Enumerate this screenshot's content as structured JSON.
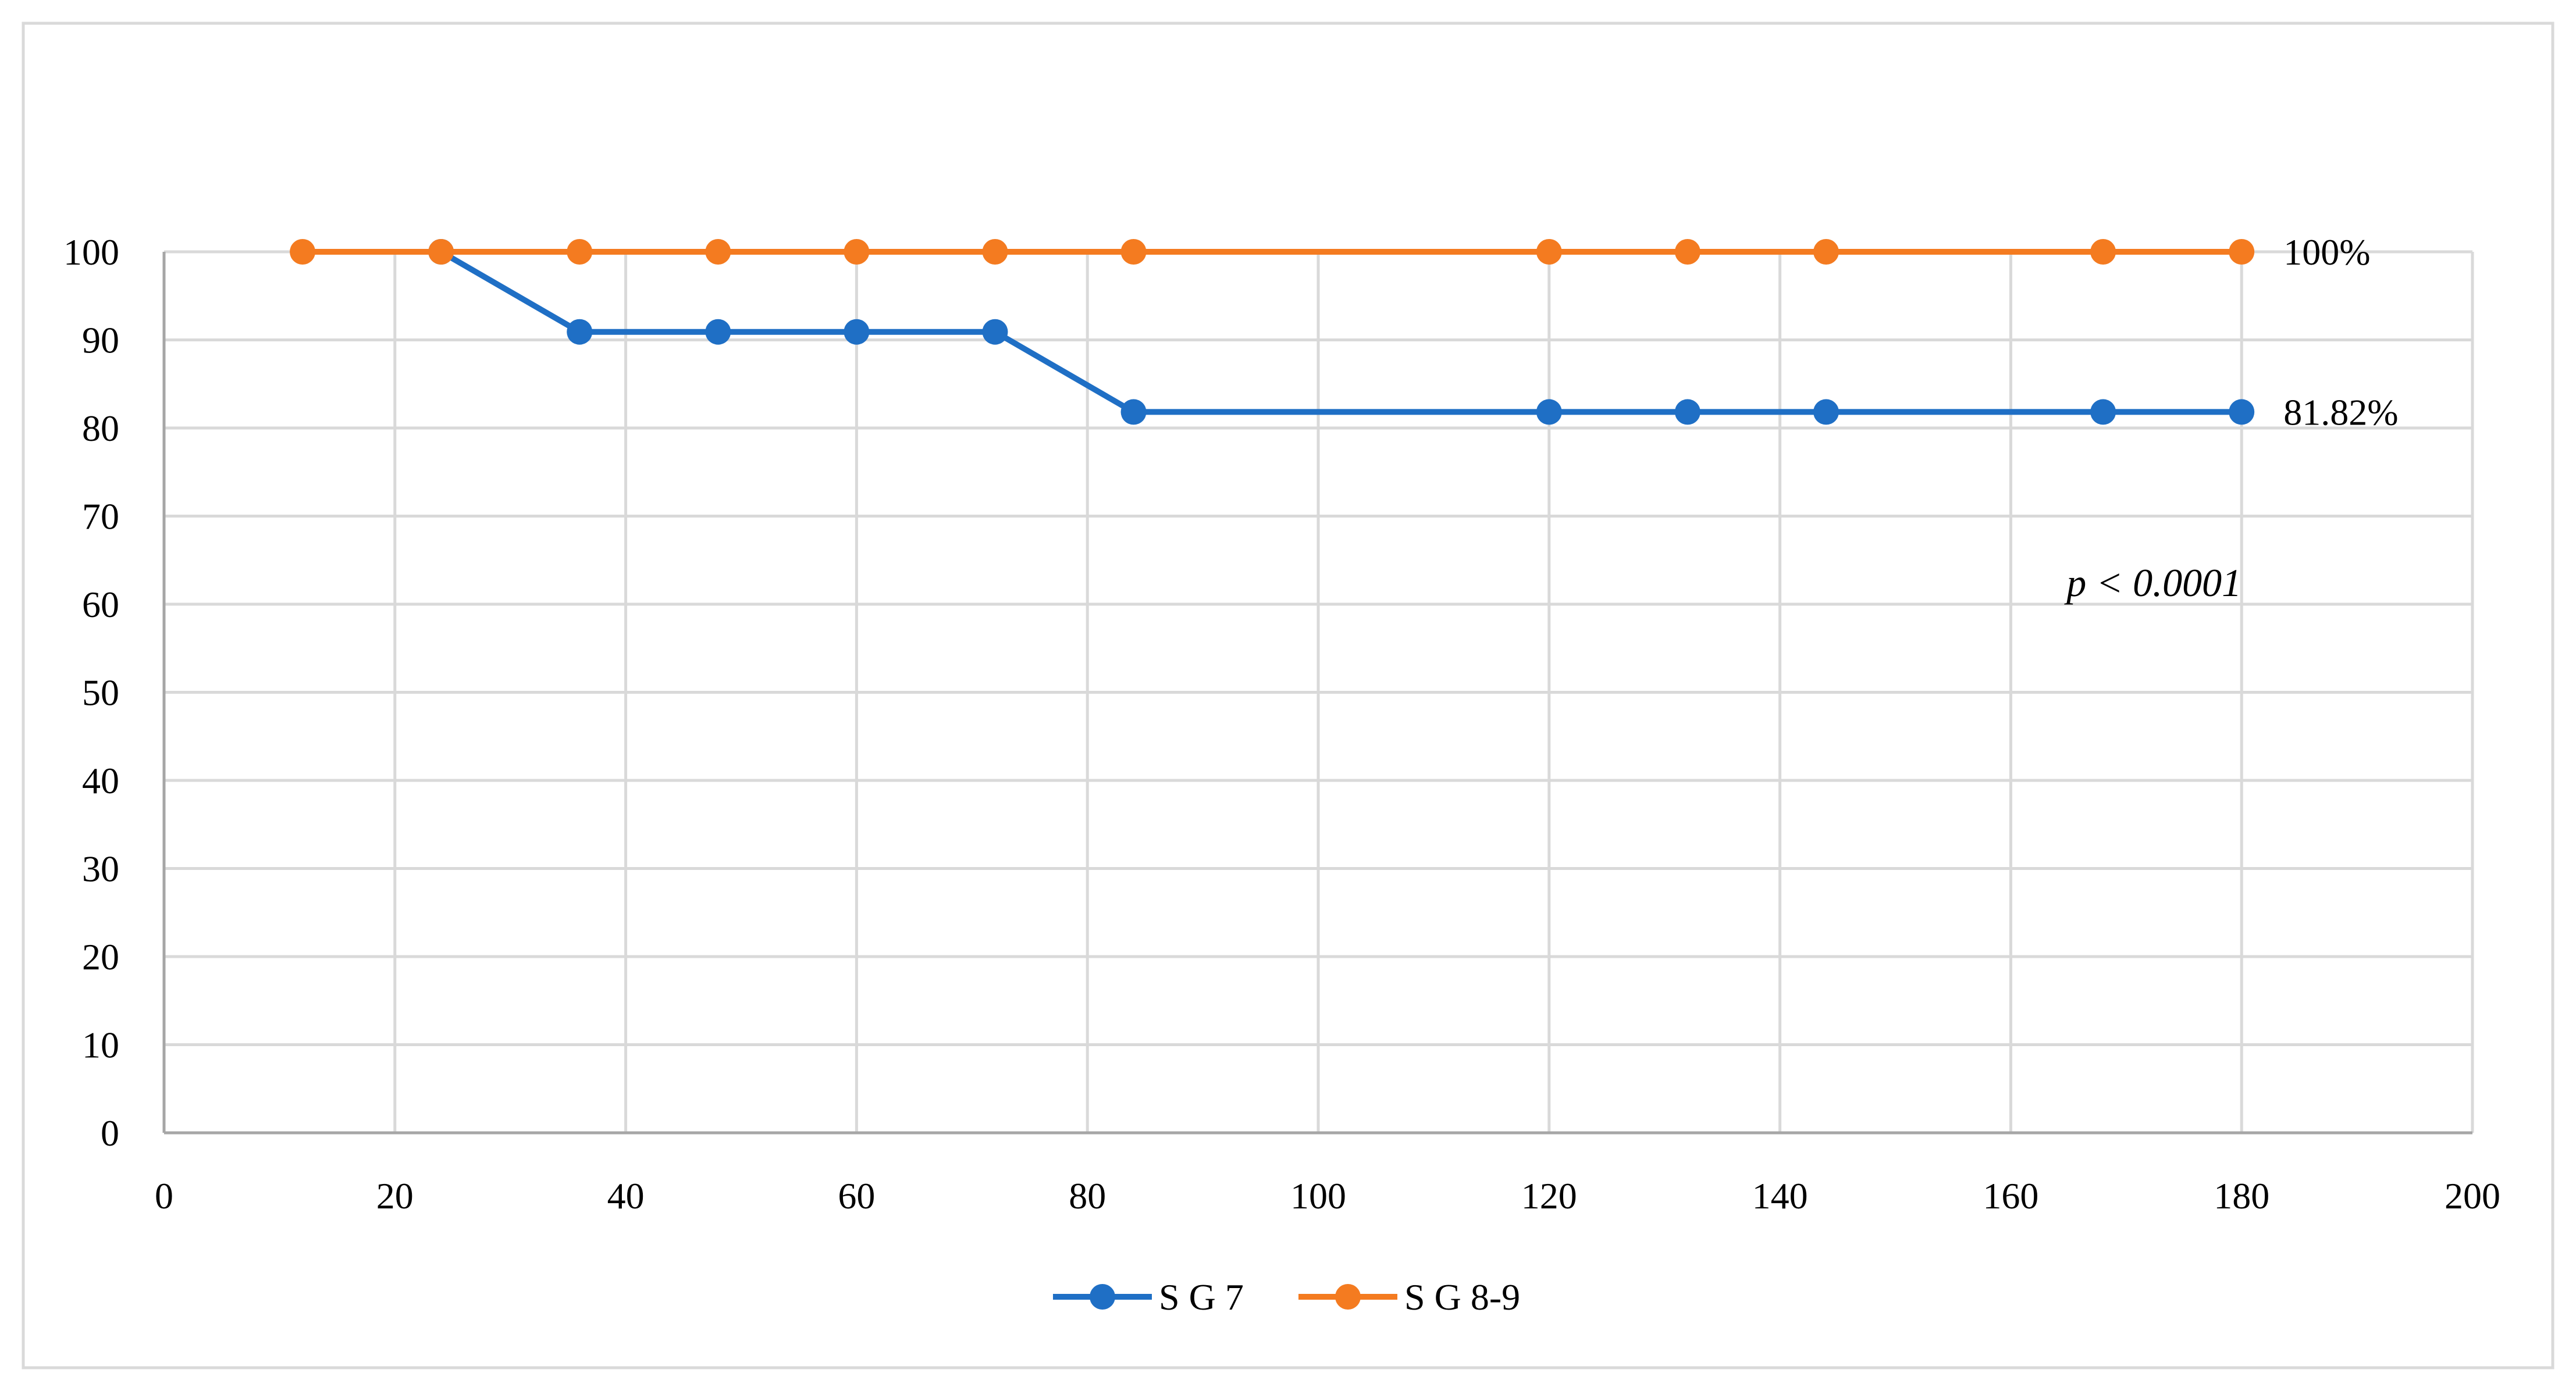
{
  "chart_data": {
    "type": "line",
    "title": "",
    "xlabel": "",
    "ylabel": "",
    "xlim": [
      0,
      200
    ],
    "ylim": [
      0,
      100
    ],
    "x_ticks": [
      "0",
      "20",
      "40",
      "60",
      "80",
      "100",
      "120",
      "140",
      "160",
      "180",
      "200"
    ],
    "y_ticks": [
      "0",
      "10",
      "20",
      "30",
      "40",
      "50",
      "60",
      "70",
      "80",
      "90",
      "100"
    ],
    "grid": true,
    "legend_position": "bottom",
    "series": [
      {
        "name": "S G 7",
        "color": "#1f6fc5",
        "x": [
          24,
          36,
          48,
          60,
          72,
          84,
          120,
          132,
          144,
          168,
          180
        ],
        "y": [
          100,
          90.91,
          90.91,
          90.91,
          90.91,
          81.82,
          81.82,
          81.82,
          81.82,
          81.82,
          81.82
        ],
        "end_label": "81.82%"
      },
      {
        "name": "S G 8-9",
        "color": "#f47b20",
        "x": [
          12,
          24,
          36,
          48,
          60,
          72,
          84,
          120,
          132,
          144,
          168,
          180
        ],
        "y": [
          100,
          100,
          100,
          100,
          100,
          100,
          100,
          100,
          100,
          100,
          100,
          100
        ],
        "end_label": "100%"
      }
    ],
    "annotations": [
      {
        "text": "p < 0.0001",
        "x": 180,
        "y": 62.5
      }
    ]
  }
}
